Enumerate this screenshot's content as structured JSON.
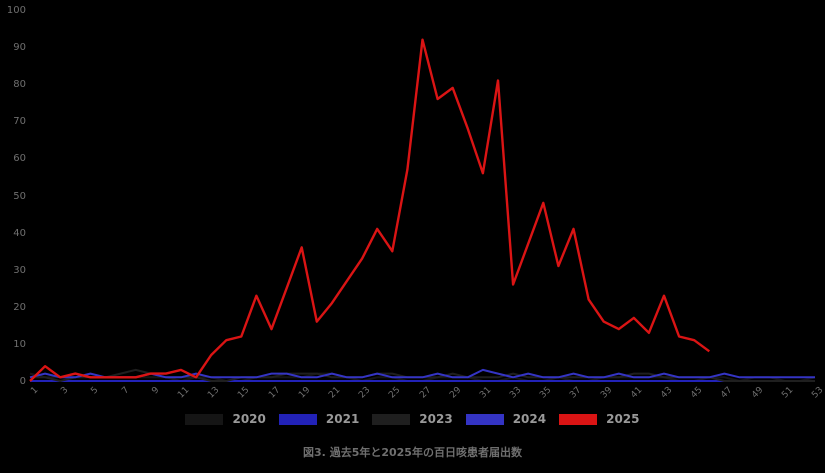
{
  "figure_title": "図3. 過去5年と2025年の百日咳患者届出数",
  "colors": {
    "background": "#000000",
    "axis_label": "#6f6f6f",
    "legend_label": "#999999",
    "title": "#6f6f6f",
    "axis_line": "#262626"
  },
  "chart_data": {
    "type": "line",
    "title": "図3. 過去5年と2025年の百日咳患者届出数",
    "xlabel": "",
    "ylabel": "",
    "x_unit": "week",
    "x_range": [
      1,
      53
    ],
    "ylim": [
      0,
      100
    ],
    "y_ticks": [
      0,
      10,
      20,
      30,
      40,
      50,
      60,
      70,
      80,
      90,
      100
    ],
    "x_ticks": [
      1,
      3,
      5,
      7,
      9,
      11,
      13,
      15,
      17,
      19,
      21,
      23,
      25,
      27,
      29,
      31,
      33,
      35,
      37,
      39,
      41,
      43,
      45,
      47,
      49,
      51,
      53
    ],
    "grid": false,
    "legend_position": "bottom",
    "series": [
      {
        "name": "2020",
        "color": "#151515",
        "values": [
          2,
          1,
          1,
          1,
          2,
          1,
          1,
          1,
          1,
          1,
          0,
          1,
          1,
          0,
          0,
          1,
          1,
          1,
          1,
          2,
          2,
          1,
          0,
          1,
          1,
          0,
          0,
          1,
          1,
          1,
          0,
          0,
          1,
          0,
          0,
          1,
          0,
          0,
          1,
          1,
          1,
          1,
          1,
          0,
          0,
          1,
          1,
          0,
          1,
          1,
          0,
          0,
          1
        ]
      },
      {
        "name": "2021",
        "color": "#2222b8",
        "values": [
          0,
          0,
          0,
          0,
          0,
          0,
          0,
          0,
          0,
          0,
          0,
          0,
          0,
          0,
          0,
          0,
          0,
          0,
          0,
          0,
          0,
          0,
          0,
          0,
          0,
          0,
          0,
          0,
          0,
          0,
          0,
          0,
          0,
          0,
          0,
          0,
          0,
          0,
          0,
          0,
          0,
          0,
          0,
          0,
          0,
          0,
          0,
          0,
          0,
          0,
          0,
          0,
          0
        ]
      },
      {
        "name": "2023",
        "color": "#1f1f1f",
        "values": [
          1,
          1,
          0,
          1,
          1,
          1,
          2,
          3,
          2,
          1,
          1,
          1,
          0,
          0,
          1,
          1,
          1,
          2,
          2,
          2,
          1,
          1,
          1,
          2,
          2,
          1,
          1,
          1,
          2,
          1,
          1,
          1,
          2,
          1,
          1,
          1,
          1,
          1,
          1,
          1,
          2,
          2,
          1,
          1,
          1,
          1,
          0,
          0,
          0,
          0,
          0,
          0,
          0
        ]
      },
      {
        "name": "2024",
        "color": "#3434c4",
        "values": [
          1,
          2,
          1,
          1,
          2,
          1,
          1,
          1,
          2,
          1,
          1,
          2,
          1,
          1,
          1,
          1,
          2,
          2,
          1,
          1,
          2,
          1,
          1,
          2,
          1,
          1,
          1,
          2,
          1,
          1,
          3,
          2,
          1,
          2,
          1,
          1,
          2,
          1,
          1,
          2,
          1,
          1,
          2,
          1,
          1,
          1,
          2,
          1,
          1,
          1,
          1,
          1,
          1
        ]
      },
      {
        "name": "2025",
        "color": "#da1414",
        "values": [
          0,
          4,
          1,
          2,
          1,
          1,
          1,
          1,
          2,
          2,
          3,
          1,
          7,
          11,
          12,
          23,
          14,
          25,
          36,
          16,
          21,
          27,
          33,
          41,
          35,
          57,
          92,
          76,
          79,
          68,
          56,
          81,
          26,
          37,
          48,
          31,
          41,
          22,
          16,
          14,
          17,
          13,
          23,
          12,
          11,
          8
        ]
      }
    ]
  }
}
